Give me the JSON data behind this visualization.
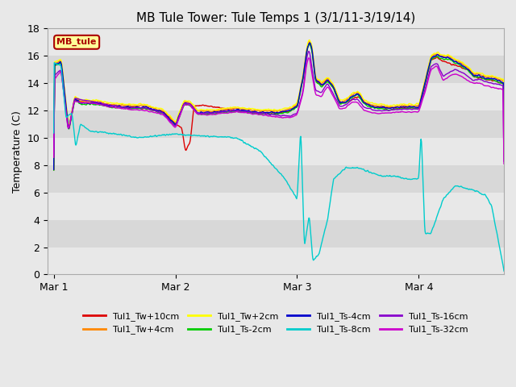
{
  "title": "MB Tule Tower: Tule Temps 1 (3/1/11-3/19/14)",
  "ylabel": "Temperature (C)",
  "ylim": [
    0,
    18
  ],
  "yticks": [
    0,
    2,
    4,
    6,
    8,
    10,
    12,
    14,
    16,
    18
  ],
  "xlabel_ticks": [
    "Mar 1",
    "Mar 2",
    "Mar 3",
    "Mar 4"
  ],
  "annotation_box": "MB_tule",
  "series": [
    {
      "label": "Tul1_Tw+10cm",
      "color": "#dd0000"
    },
    {
      "label": "Tul1_Tw+4cm",
      "color": "#ff8800"
    },
    {
      "label": "Tul1_Tw+2cm",
      "color": "#ffff00"
    },
    {
      "label": "Tul1_Ts-2cm",
      "color": "#00cc00"
    },
    {
      "label": "Tul1_Ts-4cm",
      "color": "#0000cc"
    },
    {
      "label": "Tul1_Ts-8cm",
      "color": "#00cccc"
    },
    {
      "label": "Tul1_Ts-16cm",
      "color": "#8800cc"
    },
    {
      "label": "Tul1_Ts-32cm",
      "color": "#cc00cc"
    }
  ],
  "grid_colors": [
    "#e8e8e8",
    "#d8d8d8"
  ],
  "fig_facecolor": "#e8e8e8"
}
